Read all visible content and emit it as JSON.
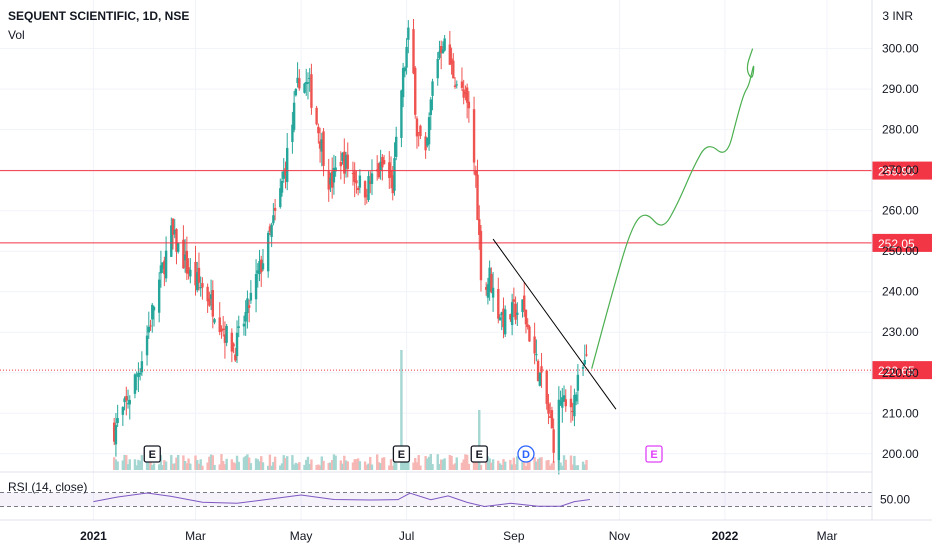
{
  "header": {
    "title": "SEQUENT SCIENTIFIC, 1D, NSE",
    "volume_label": "Vol",
    "rsi_label": "RSI (14, close)",
    "currency": "3 INR"
  },
  "chart_data": {
    "type": "candlestick",
    "symbol": "SEQUENT SCIENTIFIC",
    "interval": "1D",
    "exchange": "NSE",
    "currency": "INR",
    "ylim": [
      196,
      312
    ],
    "y_ticks": [
      "200.00",
      "210.00",
      "220.00",
      "230.00",
      "240.00",
      "250.00",
      "260.00",
      "270.00",
      "280.00",
      "290.00",
      "300.00"
    ],
    "x_ticks": [
      "2021",
      "Mar",
      "May",
      "Jul",
      "Sep",
      "Nov",
      "2022",
      "Mar"
    ],
    "x_tick_dates": [
      "2021-01-01",
      "2021-03-01",
      "2021-05-01",
      "2021-07-01",
      "2021-09-01",
      "2021-11-01",
      "2022-01-01",
      "2022-03-01"
    ],
    "x_range": [
      "2020-11-08",
      "2022-03-27"
    ],
    "price_path": [
      [
        "2021-01-13",
        206
      ],
      [
        "2021-01-20",
        212
      ],
      [
        "2021-01-28",
        222
      ],
      [
        "2021-02-04",
        235
      ],
      [
        "2021-02-09",
        244
      ],
      [
        "2021-02-15",
        254
      ],
      [
        "2021-02-20",
        250
      ],
      [
        "2021-02-26",
        244
      ],
      [
        "2021-03-05",
        241
      ],
      [
        "2021-03-12",
        236
      ],
      [
        "2021-03-19",
        229
      ],
      [
        "2021-03-24",
        226
      ],
      [
        "2021-03-30",
        234
      ],
      [
        "2021-04-06",
        244
      ],
      [
        "2021-04-12",
        252
      ],
      [
        "2021-04-18",
        262
      ],
      [
        "2021-04-24",
        276
      ],
      [
        "2021-04-30",
        293
      ],
      [
        "2021-05-06",
        290
      ],
      [
        "2021-05-12",
        278
      ],
      [
        "2021-05-18",
        266
      ],
      [
        "2021-05-24",
        273
      ],
      [
        "2021-05-30",
        270
      ],
      [
        "2021-06-06",
        265
      ],
      [
        "2021-06-12",
        268
      ],
      [
        "2021-06-18",
        271
      ],
      [
        "2021-06-23",
        266
      ],
      [
        "2021-06-28",
        290
      ],
      [
        "2021-07-03",
        306
      ],
      [
        "2021-07-07",
        280
      ],
      [
        "2021-07-12",
        272
      ],
      [
        "2021-07-17",
        296
      ],
      [
        "2021-07-22",
        302
      ],
      [
        "2021-07-27",
        295
      ],
      [
        "2021-08-01",
        290
      ],
      [
        "2021-08-06",
        284
      ],
      [
        "2021-08-10",
        268
      ],
      [
        "2021-08-14",
        238
      ],
      [
        "2021-08-18",
        244
      ],
      [
        "2021-08-22",
        236
      ],
      [
        "2021-08-27",
        233
      ],
      [
        "2021-09-01",
        235
      ],
      [
        "2021-09-06",
        236
      ],
      [
        "2021-09-11",
        228
      ],
      [
        "2021-09-16",
        219
      ],
      [
        "2021-09-20",
        212
      ],
      [
        "2021-09-24",
        203
      ],
      [
        "2021-09-28",
        214
      ],
      [
        "2021-10-02",
        210
      ],
      [
        "2021-10-06",
        214
      ],
      [
        "2021-10-10",
        220
      ],
      [
        "2021-10-14",
        223
      ]
    ],
    "horizontal_levels": [
      {
        "value": 269.9,
        "label": "269.90",
        "color": "#f23645",
        "style": "solid"
      },
      {
        "value": 252.05,
        "label": "252.05",
        "color": "#f23645",
        "style": "solid"
      },
      {
        "value": 220.65,
        "label": "220.65",
        "color": "#f23645",
        "style": "dotted"
      }
    ],
    "trendline": {
      "from": [
        "2021-08-20",
        253
      ],
      "to": [
        "2021-10-30",
        211
      ],
      "color": "#000000"
    },
    "projection": {
      "color": "#4caf50",
      "points": [
        [
          "2021-10-16",
          221
        ],
        [
          "2021-10-28",
          240
        ],
        [
          "2021-11-08",
          256
        ],
        [
          "2021-11-16",
          260
        ],
        [
          "2021-11-26",
          255
        ],
        [
          "2021-12-05",
          262
        ],
        [
          "2021-12-14",
          271
        ],
        [
          "2021-12-22",
          277
        ],
        [
          "2022-01-02",
          273
        ],
        [
          "2022-01-08",
          283
        ],
        [
          "2022-01-12",
          289
        ],
        [
          "2022-01-15",
          291
        ],
        [
          "2022-01-18",
          297
        ],
        [
          "2022-01-17",
          292
        ],
        [
          "2022-01-13",
          295
        ],
        [
          "2022-01-17",
          300
        ]
      ]
    },
    "event_markers": [
      {
        "date": "2021-02-04",
        "label": "E",
        "color": "#131722",
        "shape": "square"
      },
      {
        "date": "2021-06-28",
        "label": "E",
        "color": "#131722",
        "shape": "square"
      },
      {
        "date": "2021-08-12",
        "label": "E",
        "color": "#131722",
        "shape": "square"
      },
      {
        "date": "2021-09-08",
        "label": "D",
        "color": "#2962ff",
        "shape": "circle"
      },
      {
        "date": "2021-11-21",
        "label": "E",
        "color": "#e040fb",
        "shape": "square"
      }
    ],
    "volume_spikes": [
      {
        "date": "2021-06-28",
        "value": 1.0
      },
      {
        "date": "2021-08-12",
        "value": 0.5
      }
    ],
    "rsi": {
      "name": "RSI (14, close)",
      "upper": 70,
      "lower": 30,
      "last_label": "50.00",
      "path": [
        [
          "2021-01-01",
          44
        ],
        [
          "2021-01-15",
          58
        ],
        [
          "2021-02-01",
          66
        ],
        [
          "2021-02-15",
          62
        ],
        [
          "2021-03-05",
          42
        ],
        [
          "2021-03-25",
          36
        ],
        [
          "2021-04-15",
          55
        ],
        [
          "2021-05-01",
          62
        ],
        [
          "2021-05-20",
          46
        ],
        [
          "2021-06-10",
          50
        ],
        [
          "2021-06-26",
          48
        ],
        [
          "2021-07-03",
          72
        ],
        [
          "2021-07-15",
          50
        ],
        [
          "2021-07-25",
          58
        ],
        [
          "2021-08-05",
          45
        ],
        [
          "2021-08-15",
          30
        ],
        [
          "2021-08-30",
          36
        ],
        [
          "2021-09-15",
          33
        ],
        [
          "2021-09-28",
          30
        ],
        [
          "2021-10-06",
          40
        ],
        [
          "2021-10-15",
          50
        ]
      ]
    },
    "colors": {
      "up": "#26a69a",
      "down": "#ef5350",
      "rsi": "#7e57c2"
    }
  }
}
